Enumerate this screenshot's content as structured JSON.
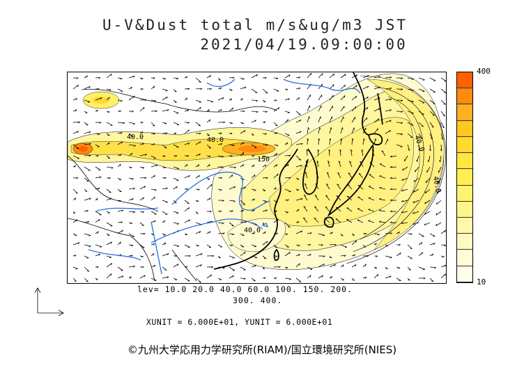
{
  "title_line1": "U-V&Dust total m/s&ug/m3 JST",
  "title_line2": "2021/04/19.09:00:00",
  "colorbar": {
    "max_label": "400",
    "min_label": "10",
    "colors": [
      "#ff6000",
      "#ff8a10",
      "#ffb020",
      "#ffc820",
      "#ffd830",
      "#ffe640",
      "#fff050",
      "#fff470",
      "#fff68a",
      "#fff8a8",
      "#fffac0",
      "#fffcd8",
      "#fffee8"
    ]
  },
  "contour_labels": [
    "40.0",
    "40.0",
    "150",
    "40.0",
    "40.0",
    "40.0"
  ],
  "levels_line1": "lev= 10.0 20.0 40.0 60.0 100. 150. 200.",
  "levels_line2": "300. 400.",
  "unit_text": "XUNIT = 6.000E+01, YUNIT = 6.000E+01",
  "credit": "©九州大学応用力学研究所(RIAM)/国立環境研究所(NIES)"
}
